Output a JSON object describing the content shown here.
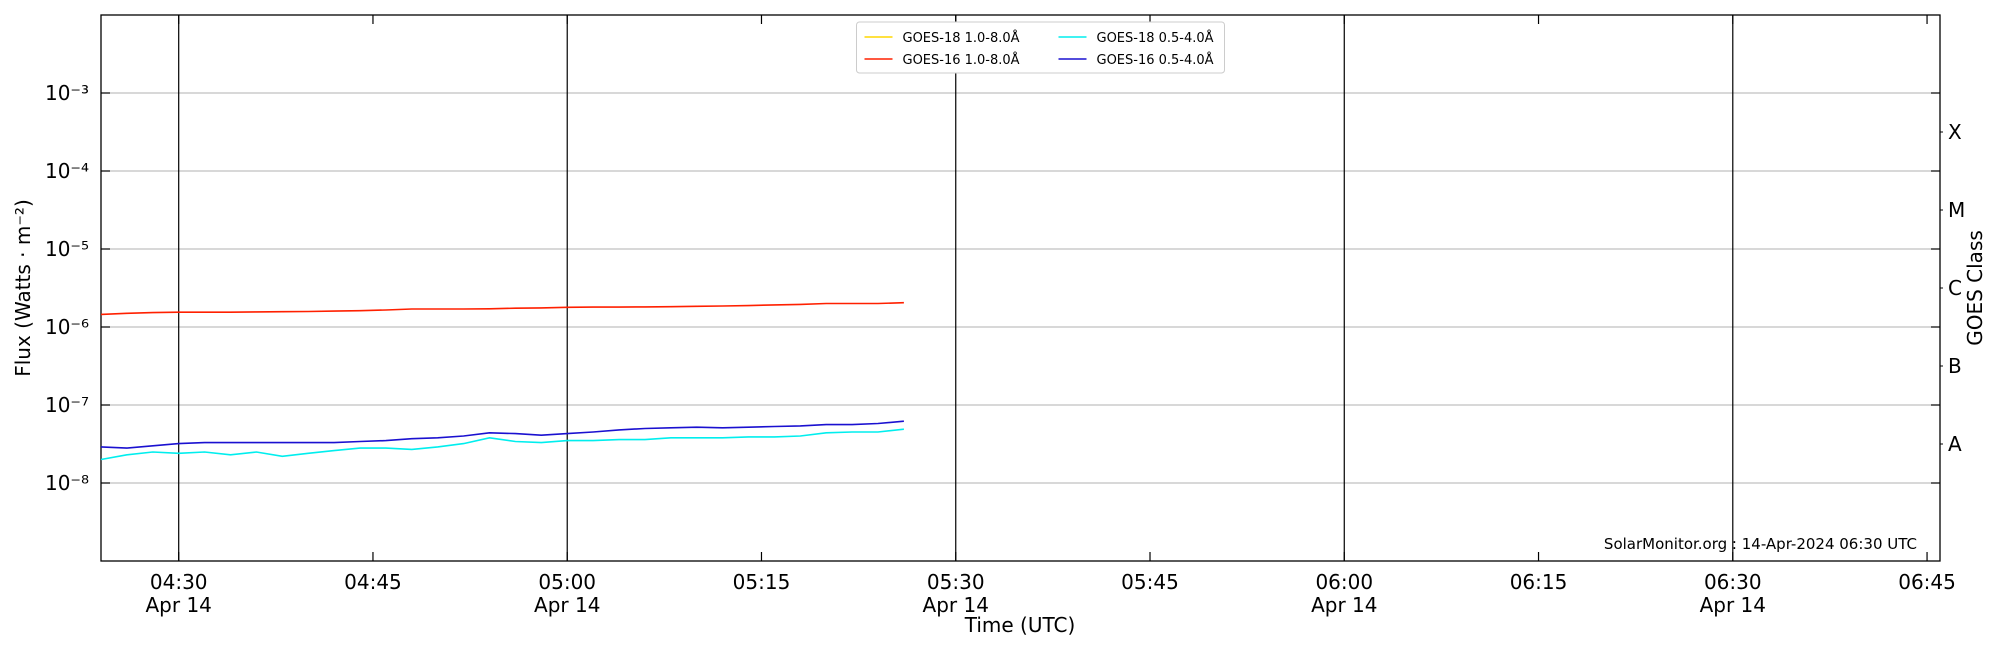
{
  "chart_data": {
    "type": "line",
    "xlabel": "Time (UTC)",
    "ylabel": "Flux (Watts · m⁻²)",
    "y2label": "GOES Class",
    "annotation": "SolarMonitor.org : 14-Apr-2024 06:30 UTC",
    "yscale": "log",
    "grid": true,
    "legend": "upper center",
    "xlim": [
      "04:24",
      "06:46"
    ],
    "xticks": [
      {
        "value": "04:30",
        "label": [
          "04:30",
          "Apr 14"
        ]
      },
      "04:45",
      {
        "value": "05:00",
        "label": [
          "05:00",
          "Apr 14"
        ]
      },
      "05:15",
      {
        "value": "05:30",
        "label": [
          "05:30",
          "Apr 14"
        ]
      },
      "05:45",
      {
        "value": "06:00",
        "label": [
          "06:00",
          "Apr 14"
        ]
      },
      "06:15",
      {
        "value": "06:30",
        "label": [
          "06:30",
          "Apr 14"
        ]
      },
      "06:45"
    ],
    "ylim": [
      1e-09,
      0.01
    ],
    "yticks": [
      {
        "value": 1e-08,
        "label": "10⁻⁸"
      },
      {
        "value": 1e-07,
        "label": "10⁻⁷"
      },
      {
        "value": 1e-06,
        "label": "10⁻⁶"
      },
      {
        "value": 1e-05,
        "label": "10⁻⁵"
      },
      {
        "value": 0.0001,
        "label": "10⁻⁴"
      },
      {
        "value": 0.001,
        "label": "10⁻³"
      }
    ],
    "y2lim": [
      1e-09,
      0.01
    ],
    "y2ticks": [
      {
        "value": 3.162e-08,
        "label": "A"
      },
      {
        "value": 3.162e-07,
        "label": "B"
      },
      {
        "value": 3.162e-06,
        "label": "C"
      },
      {
        "value": 3.162e-05,
        "label": "M"
      },
      {
        "value": 0.0003162,
        "label": "X"
      }
    ],
    "x": [
      "04:24",
      "04:26",
      "04:28",
      "04:30",
      "04:32",
      "04:34",
      "04:36",
      "04:38",
      "04:40",
      "04:42",
      "04:44",
      "04:46",
      "04:48",
      "04:50",
      "04:52",
      "04:54",
      "04:56",
      "04:58",
      "05:00",
      "05:02",
      "05:04",
      "05:06",
      "05:08",
      "05:10",
      "05:12",
      "05:14",
      "05:16",
      "05:18",
      "05:20",
      "05:22",
      "05:24",
      "05:26"
    ],
    "series": [
      {
        "name": "GOES-18 1.0-8.0Å",
        "color": "#ffd700",
        "values": [
          null,
          null,
          null,
          null,
          null,
          null,
          null,
          null,
          null,
          null,
          null,
          null,
          null,
          null,
          null,
          null,
          null,
          null,
          null,
          null,
          null,
          null,
          null,
          null,
          null,
          null,
          null,
          null,
          null,
          null,
          null,
          null
        ]
      },
      {
        "name": "GOES-16 1.0-8.0Å",
        "color": "#ff2000",
        "values": [
          1.45e-06,
          1.5e-06,
          1.53e-06,
          1.55e-06,
          1.55e-06,
          1.55e-06,
          1.56e-06,
          1.57e-06,
          1.58e-06,
          1.6e-06,
          1.62e-06,
          1.65e-06,
          1.7e-06,
          1.7e-06,
          1.7e-06,
          1.71e-06,
          1.74e-06,
          1.76e-06,
          1.79e-06,
          1.8e-06,
          1.8e-06,
          1.81e-06,
          1.82e-06,
          1.84e-06,
          1.86e-06,
          1.88e-06,
          1.92e-06,
          1.95e-06,
          2e-06,
          2e-06,
          2e-06,
          2.05e-06
        ]
      },
      {
        "name": "GOES-18 0.5-4.0Å",
        "color": "#00eeee",
        "values": [
          2e-08,
          2.3e-08,
          2.5e-08,
          2.4e-08,
          2.5e-08,
          2.3e-08,
          2.5e-08,
          2.2e-08,
          2.4e-08,
          2.6e-08,
          2.8e-08,
          2.8e-08,
          2.7e-08,
          2.9e-08,
          3.2e-08,
          3.8e-08,
          3.4e-08,
          3.3e-08,
          3.5e-08,
          3.5e-08,
          3.6e-08,
          3.6e-08,
          3.8e-08,
          3.8e-08,
          3.8e-08,
          3.9e-08,
          3.9e-08,
          4e-08,
          4.4e-08,
          4.5e-08,
          4.5e-08,
          4.9e-08
        ]
      },
      {
        "name": "GOES-16 0.5-4.0Å",
        "color": "#1a10d0",
        "values": [
          2.9e-08,
          2.8e-08,
          3e-08,
          3.2e-08,
          3.3e-08,
          3.3e-08,
          3.3e-08,
          3.3e-08,
          3.3e-08,
          3.3e-08,
          3.4e-08,
          3.5e-08,
          3.7e-08,
          3.8e-08,
          4e-08,
          4.4e-08,
          4.3e-08,
          4.1e-08,
          4.3e-08,
          4.5e-08,
          4.8e-08,
          5e-08,
          5.1e-08,
          5.2e-08,
          5.1e-08,
          5.2e-08,
          5.3e-08,
          5.4e-08,
          5.6e-08,
          5.6e-08,
          5.8e-08,
          6.2e-08
        ]
      }
    ]
  }
}
